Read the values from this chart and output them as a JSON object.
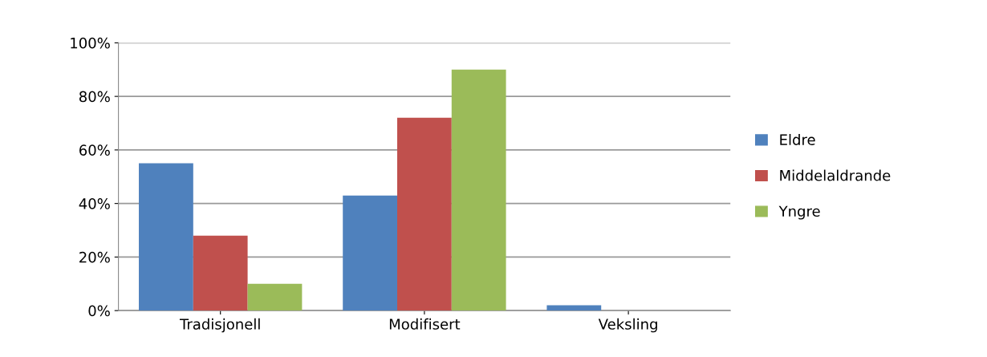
{
  "chart_data": {
    "type": "bar",
    "categories": [
      "Tradisjonell",
      "Modifisert",
      "Veksling"
    ],
    "series": [
      {
        "name": "Eldre",
        "color": "#4f81bd",
        "values": [
          55,
          43,
          2
        ]
      },
      {
        "name": "Middelaldrande",
        "color": "#c0504d",
        "values": [
          28,
          72,
          0
        ]
      },
      {
        "name": "Yngre",
        "color": "#9bbb59",
        "values": [
          10,
          90,
          0
        ]
      }
    ],
    "ylim": [
      0,
      100
    ],
    "yticks": [
      {
        "value": 0,
        "label": "0%"
      },
      {
        "value": 20,
        "label": "20%"
      },
      {
        "value": 40,
        "label": "40%"
      },
      {
        "value": 60,
        "label": "60%"
      },
      {
        "value": 80,
        "label": "80%"
      },
      {
        "value": 100,
        "label": "100%"
      }
    ],
    "grid": "y",
    "legend": "right"
  }
}
